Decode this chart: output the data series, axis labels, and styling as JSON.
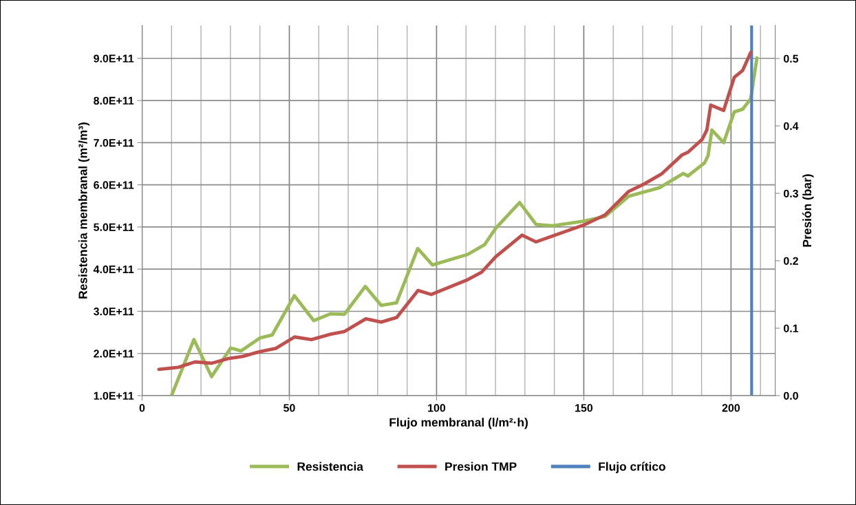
{
  "chart_data": {
    "type": "line",
    "xlabel": "Flujo membranal (l/m²·h)",
    "ylabel": "Resistencia membranal (m²/m³)",
    "y2label": "Presión (bar)",
    "series": [
      {
        "name": "Resistencia",
        "color": "#9bbb59",
        "x": [
          10,
          17.6,
          23.6,
          30.1,
          33.6,
          40.1,
          44.2,
          51.7,
          58.3,
          63.9,
          68.7,
          75.8,
          81.2,
          86.4,
          93.6,
          98.6,
          110.6,
          116.3,
          120.1,
          128.2,
          133.8,
          139.4,
          150,
          157.2,
          165.3,
          175.7,
          183.8,
          185.4,
          191,
          192.2,
          193.5,
          197.5,
          201.1,
          203.9,
          206.7,
          208.8
        ],
        "values": [
          100000000000.0,
          233000000000.0,
          145000000000.0,
          213000000000.0,
          206000000000.0,
          237000000000.0,
          244000000000.0,
          337000000000.0,
          278000000000.0,
          294000000000.0,
          293000000000.0,
          359000000000.0,
          314000000000.0,
          320000000000.0,
          449000000000.0,
          410000000000.0,
          435000000000.0,
          458000000000.0,
          497000000000.0,
          558000000000.0,
          506000000000.0,
          503000000000.0,
          514000000000.0,
          525000000000.0,
          573000000000.0,
          593000000000.0,
          627000000000.0,
          621000000000.0,
          652000000000.0,
          669000000000.0,
          730000000000.0,
          700000000000.0,
          773000000000.0,
          779000000000.0,
          804000000000.0,
          901000000000.0
        ]
      },
      {
        "name": "Presion TMP",
        "color": "#c0504d",
        "axis": "y2",
        "x": [
          5.7,
          12.3,
          18.0,
          23.6,
          29.3,
          34.1,
          39.7,
          45.4,
          51.8,
          57.5,
          63.9,
          68.7,
          76.0,
          81.2,
          86.5,
          93.7,
          98.2,
          110.6,
          115.3,
          120.1,
          129,
          133.8,
          150,
          157.2,
          165.3,
          170.1,
          176.5,
          183.4,
          185.4,
          190.2,
          191.8,
          193.1,
          197.5,
          201.1,
          203.9,
          206.7
        ],
        "values": [
          0.039,
          0.042,
          0.05,
          0.048,
          0.055,
          0.058,
          0.065,
          0.07,
          0.087,
          0.083,
          0.091,
          0.095,
          0.114,
          0.109,
          0.116,
          0.156,
          0.15,
          0.172,
          0.183,
          0.206,
          0.238,
          0.228,
          0.253,
          0.268,
          0.303,
          0.313,
          0.329,
          0.357,
          0.361,
          0.38,
          0.394,
          0.431,
          0.423,
          0.472,
          0.482,
          0.509
        ]
      }
    ],
    "ref_lines": [
      {
        "axis": "x",
        "value": 207,
        "label": "Flujo crítico",
        "color": "#4f81bd"
      }
    ],
    "xlim": [
      0,
      215
    ],
    "xticks": [
      0,
      {
        "value": 10,
        "label": null
      },
      {
        "value": 20,
        "label": null
      },
      {
        "value": 30,
        "label": null
      },
      {
        "value": 40,
        "label": null
      },
      50,
      {
        "value": 60,
        "label": null
      },
      {
        "value": 70,
        "label": null
      },
      {
        "value": 80,
        "label": null
      },
      {
        "value": 90,
        "label": null
      },
      100,
      {
        "value": 110,
        "label": null
      },
      {
        "value": 120,
        "label": null
      },
      {
        "value": 130,
        "label": null
      },
      {
        "value": 140,
        "label": null
      },
      150,
      {
        "value": 160,
        "label": null
      },
      {
        "value": 170,
        "label": null
      },
      {
        "value": 180,
        "label": null
      },
      {
        "value": 190,
        "label": null
      },
      200,
      {
        "value": 210,
        "label": null
      }
    ],
    "ylim": [
      100000000000.0,
      978000000000.0
    ],
    "yticks": [
      {
        "value": 100000000000.0,
        "label": "1.0E+11"
      },
      {
        "value": 200000000000.0,
        "label": "2.0E+11"
      },
      {
        "value": 300000000000.0,
        "label": "3.0E+11"
      },
      {
        "value": 400000000000.0,
        "label": "4.0E+11"
      },
      {
        "value": 500000000000.0,
        "label": "5.0E+11"
      },
      {
        "value": 600000000000.0,
        "label": "6.0E+11"
      },
      {
        "value": 700000000000.0,
        "label": "7.0E+11"
      },
      {
        "value": 800000000000.0,
        "label": "8.0E+11"
      },
      {
        "value": 900000000000.0,
        "label": "9.0E+11"
      }
    ],
    "y2lim": [
      0,
      0.549
    ],
    "y2ticks": [
      {
        "value": 0,
        "label": "0.0"
      },
      0.1,
      0.2,
      0.3,
      0.4,
      0.5
    ],
    "grid": true,
    "legend": "bottom",
    "marker": "none",
    "line_style": "solid"
  }
}
